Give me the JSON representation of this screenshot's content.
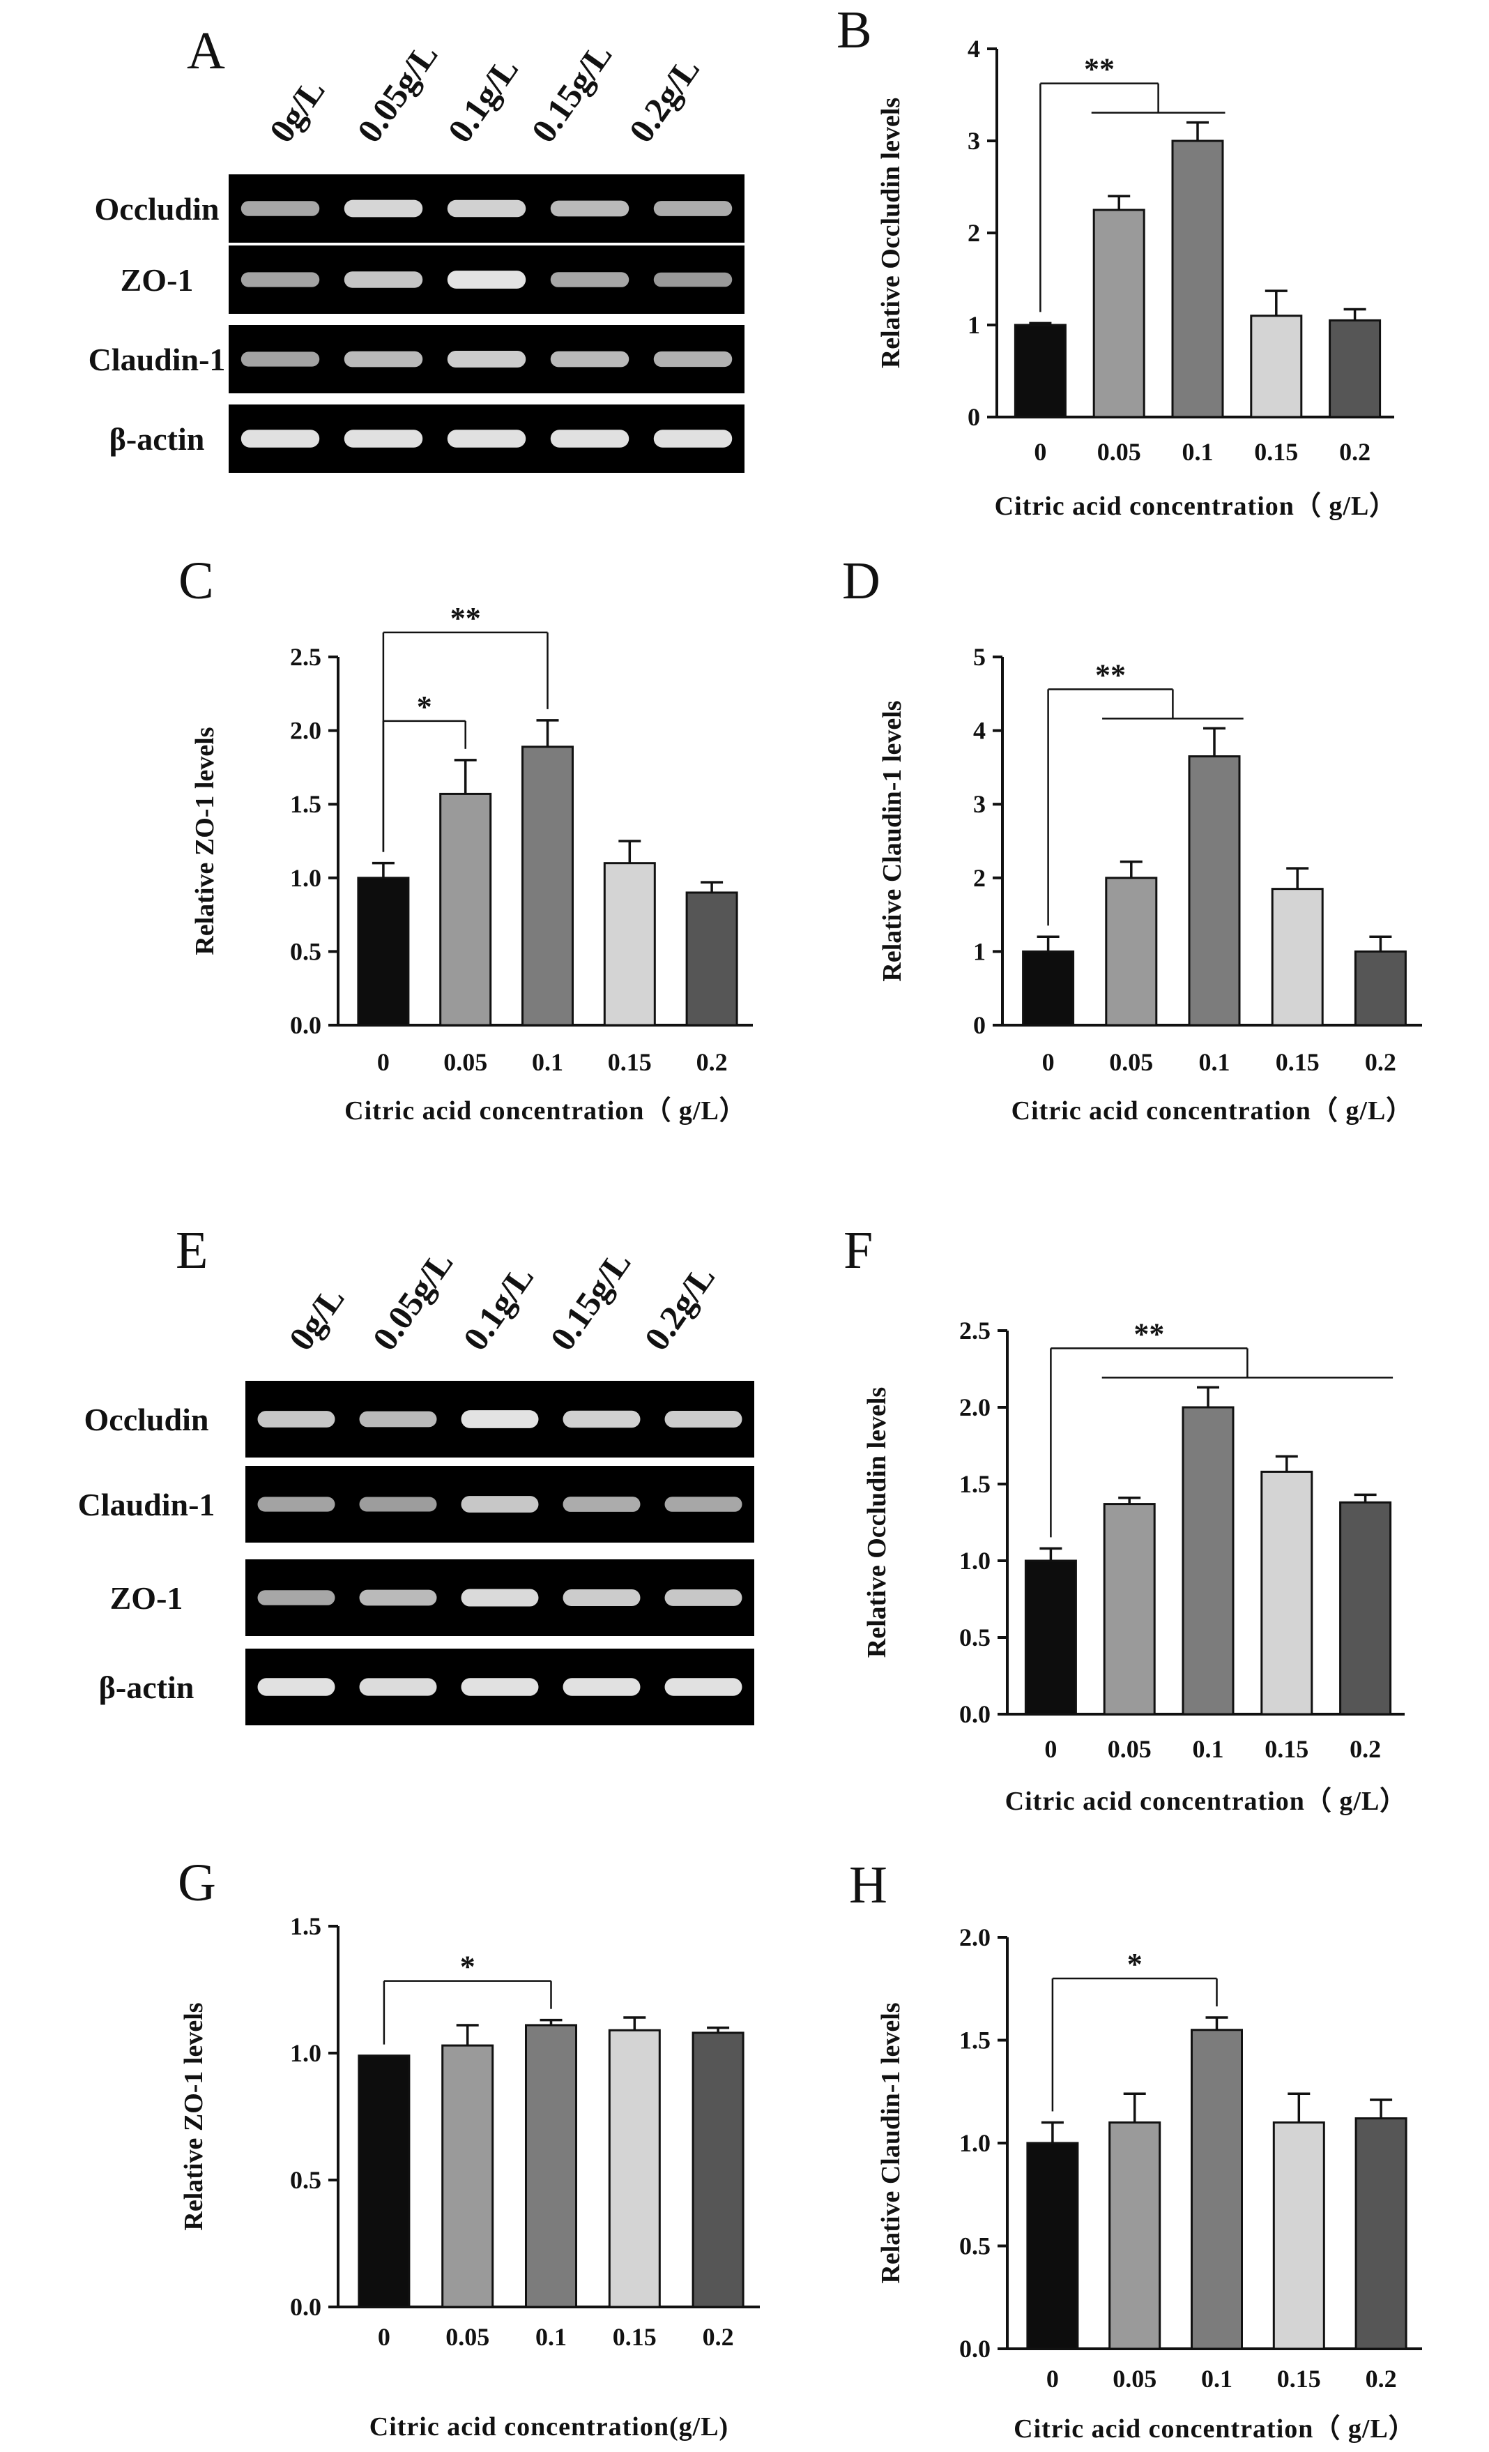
{
  "colors": {
    "bars": [
      "#0d0d0d",
      "#9a9a9a",
      "#7c7c7c",
      "#d4d4d4",
      "#565656"
    ],
    "band": "#e8e8e8",
    "gel": "#000000"
  },
  "gels": [
    {
      "panel": "A",
      "columns": [
        "0g/L",
        "0.05g/L",
        "0.1g/L",
        "0.15g/L",
        "0.2g/L"
      ],
      "rows": [
        "Occludin",
        "ZO-1",
        "Claudin-1",
        "β-actin"
      ],
      "band_intensity": [
        [
          0.72,
          0.92,
          0.9,
          0.8,
          0.74
        ],
        [
          0.7,
          0.85,
          0.98,
          0.72,
          0.66
        ],
        [
          0.7,
          0.8,
          0.88,
          0.8,
          0.76
        ],
        [
          0.97,
          0.97,
          0.97,
          0.97,
          0.97
        ]
      ]
    },
    {
      "panel": "E",
      "columns": [
        "0g/L",
        "0.05g/L",
        "0.1g/L",
        "0.15g/L",
        "0.2g/L"
      ],
      "rows": [
        "Occludin",
        "Claudin-1",
        "ZO-1",
        "β-actin"
      ],
      "band_intensity": [
        [
          0.86,
          0.8,
          0.98,
          0.9,
          0.88
        ],
        [
          0.7,
          0.68,
          0.86,
          0.74,
          0.72
        ],
        [
          0.72,
          0.8,
          0.94,
          0.88,
          0.86
        ],
        [
          0.97,
          0.95,
          0.97,
          0.97,
          0.97
        ]
      ]
    }
  ],
  "chart_data": [
    {
      "panel": "B",
      "type": "bar",
      "categories": [
        "0",
        "0.05",
        "0.1",
        "0.15",
        "0.2"
      ],
      "values": [
        1.0,
        2.25,
        3.0,
        1.1,
        1.05
      ],
      "errors": [
        0.02,
        0.15,
        0.2,
        0.27,
        0.12
      ],
      "ylim": [
        0,
        4
      ],
      "yticks": [
        "0",
        "1",
        "2",
        "3",
        "4"
      ],
      "ytick_values": [
        0,
        1,
        2,
        3,
        4
      ],
      "ylabel": "Relative Occludin levels",
      "xlabel": "Citric acid concentration（ g/L）",
      "significance": [
        {
          "from": 0,
          "to": [
            1,
            2
          ],
          "label": "**"
        }
      ]
    },
    {
      "panel": "C",
      "type": "bar",
      "categories": [
        "0",
        "0.05",
        "0.1",
        "0.15",
        "0.2"
      ],
      "values": [
        1.0,
        1.57,
        1.89,
        1.1,
        0.9
      ],
      "errors": [
        0.1,
        0.23,
        0.18,
        0.15,
        0.07
      ],
      "ylim": [
        0,
        2.5
      ],
      "yticks": [
        "0.0",
        "0.5",
        "1.0",
        "1.5",
        "2.0",
        "2.5"
      ],
      "ytick_values": [
        0,
        0.5,
        1.0,
        1.5,
        2.0,
        2.5
      ],
      "ylabel": "Relative ZO-1 levels",
      "xlabel": "Citric acid concentration（ g/L）",
      "significance": [
        {
          "from": 0,
          "to": [
            1
          ],
          "label": "*"
        },
        {
          "from": 0,
          "to": [
            2
          ],
          "label": "**"
        }
      ]
    },
    {
      "panel": "D",
      "type": "bar",
      "categories": [
        "0",
        "0.05",
        "0.1",
        "0.15",
        "0.2"
      ],
      "values": [
        1.0,
        2.0,
        3.65,
        1.85,
        1.0
      ],
      "errors": [
        0.2,
        0.22,
        0.38,
        0.28,
        0.2
      ],
      "ylim": [
        0,
        5
      ],
      "yticks": [
        "0",
        "1",
        "2",
        "3",
        "4",
        "5"
      ],
      "ytick_values": [
        0,
        1,
        2,
        3,
        4,
        5
      ],
      "ylabel": "Relative Claudin-1 levels",
      "xlabel": "Citric acid concentration（ g/L）",
      "significance": [
        {
          "from": 0,
          "to": [
            1,
            2
          ],
          "label": "**"
        }
      ]
    },
    {
      "panel": "F",
      "type": "bar",
      "categories": [
        "0",
        "0.05",
        "0.1",
        "0.15",
        "0.2"
      ],
      "values": [
        1.0,
        1.37,
        2.0,
        1.58,
        1.38
      ],
      "errors": [
        0.08,
        0.04,
        0.13,
        0.1,
        0.05
      ],
      "ylim": [
        0,
        2.5
      ],
      "yticks": [
        "0.0",
        "0.5",
        "1.0",
        "1.5",
        "2.0",
        "2.5"
      ],
      "ytick_values": [
        0,
        0.5,
        1.0,
        1.5,
        2.0,
        2.5
      ],
      "ylabel": "Relative Occludin levels",
      "xlabel": "Citric acid concentration（ g/L）",
      "significance": [
        {
          "from": 0,
          "to": [
            1,
            2,
            3,
            4
          ],
          "label": "**"
        }
      ]
    },
    {
      "panel": "G",
      "type": "bar",
      "categories": [
        "0",
        "0.05",
        "0.1",
        "0.15",
        "0.2"
      ],
      "values": [
        0.99,
        1.03,
        1.11,
        1.09,
        1.08
      ],
      "errors": [
        0.0,
        0.08,
        0.02,
        0.05,
        0.02
      ],
      "ylim": [
        0,
        1.5
      ],
      "yticks": [
        "0.0",
        "0.5",
        "1.0",
        "1.5"
      ],
      "ytick_values": [
        0,
        0.5,
        1.0,
        1.5
      ],
      "ylabel": "Relative ZO-1 levels",
      "xlabel": "Citric acid concentration(g/L)",
      "significance": [
        {
          "from": 0,
          "to": [
            2
          ],
          "label": "*"
        }
      ]
    },
    {
      "panel": "H",
      "type": "bar",
      "categories": [
        "0",
        "0.05",
        "0.1",
        "0.15",
        "0.2"
      ],
      "values": [
        1.0,
        1.1,
        1.55,
        1.1,
        1.12
      ],
      "errors": [
        0.1,
        0.14,
        0.06,
        0.14,
        0.09
      ],
      "ylim": [
        0,
        2.0
      ],
      "yticks": [
        "0.0",
        "0.5",
        "1.0",
        "1.5",
        "2.0"
      ],
      "ytick_values": [
        0,
        0.5,
        1.0,
        1.5,
        2.0
      ],
      "ylabel": "Relative Claudin-1 levels",
      "xlabel": "Citric acid concentration（ g/L）",
      "significance": [
        {
          "from": 0,
          "to": [
            2
          ],
          "label": "*"
        }
      ]
    }
  ]
}
